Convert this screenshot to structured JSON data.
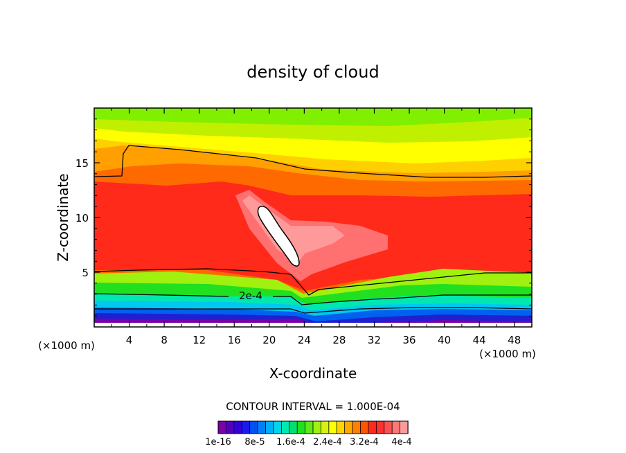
{
  "chart_data": {
    "type": "heatmap",
    "title": "density of cloud",
    "xlabel": "X-coordinate",
    "ylabel": "Z-coordinate",
    "x_unit": "(×1000 m)",
    "y_unit": "(×1000 m)",
    "xlim": [
      0,
      50
    ],
    "ylim": [
      0,
      20
    ],
    "x_ticks": [
      "4",
      "8",
      "12",
      "16",
      "20",
      "24",
      "28",
      "32",
      "36",
      "40",
      "44",
      "48"
    ],
    "y_ticks": [
      "5",
      "10",
      "15"
    ],
    "contour_interval_label": "CONTOUR INTERVAL = 1.000E-04",
    "contour_label": "2e-4",
    "colorbar": {
      "labels": [
        "1e-16",
        "8e-5",
        "1.6e-4",
        "2.4e-4",
        "3.2e-4",
        "4e-4"
      ],
      "colors": [
        "#7a00a8",
        "#5500c0",
        "#3300d8",
        "#1a1af0",
        "#0050f0",
        "#0080f8",
        "#00b0f8",
        "#00d8e8",
        "#00e8b0",
        "#00e070",
        "#20e020",
        "#60e818",
        "#a0f010",
        "#d8f010",
        "#ffff00",
        "#ffd400",
        "#ffaa00",
        "#ff7f00",
        "#ff5500",
        "#ff2a1a",
        "#ff3030",
        "#ff5050",
        "#ff7878",
        "#ff9a9a"
      ]
    }
  }
}
